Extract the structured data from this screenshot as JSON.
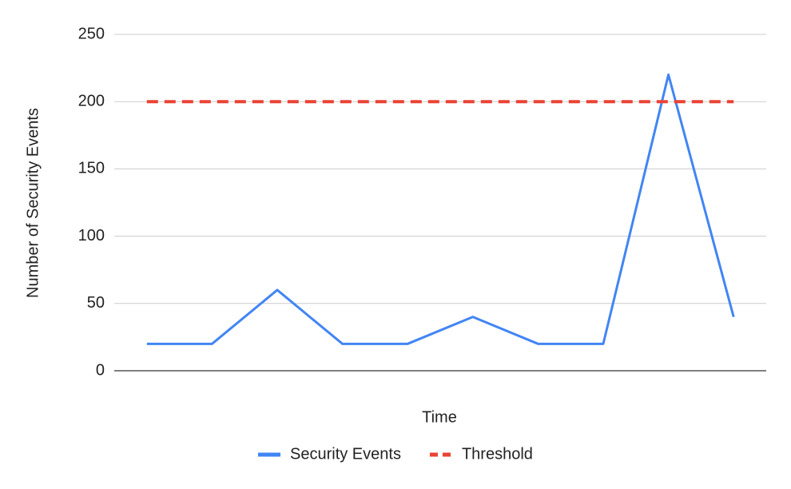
{
  "chart_data": {
    "type": "line",
    "x_label": "Time",
    "y_label": "Number of Security Events",
    "categories": [
      null,
      null,
      null,
      null,
      null,
      null,
      null,
      null,
      null,
      null
    ],
    "series": [
      {
        "name": "Security Events",
        "color": "#4285f4",
        "dashed": false,
        "values": [
          20,
          20,
          60,
          20,
          20,
          40,
          20,
          20,
          220,
          40
        ]
      },
      {
        "name": "Threshold",
        "color": "#ea4335",
        "dashed": true,
        "values": [
          200,
          200,
          200,
          200,
          200,
          200,
          200,
          200,
          200,
          200
        ]
      }
    ],
    "ylim": [
      0,
      250
    ],
    "yticks": [
      0,
      50,
      100,
      150,
      200,
      250
    ],
    "grid": true,
    "legend": "bottom"
  }
}
